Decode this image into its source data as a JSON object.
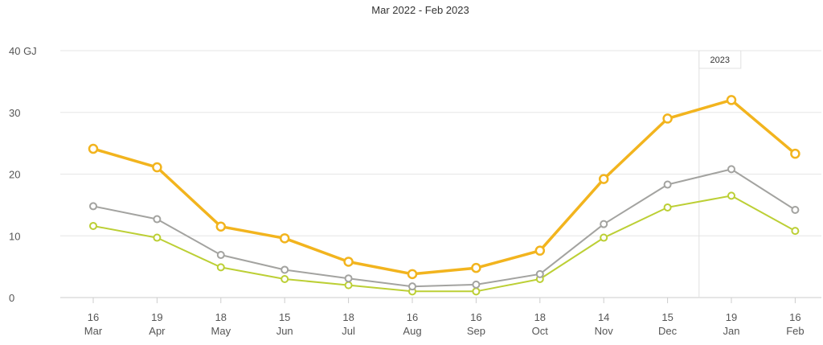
{
  "chart_data": {
    "type": "line",
    "title": "Mar 2022 - Feb 2023",
    "xlabel": "",
    "ylabel": "",
    "ylim": [
      0,
      40
    ],
    "yticks": [
      {
        "value": 0,
        "label": "0"
      },
      {
        "value": 10,
        "label": "10"
      },
      {
        "value": 20,
        "label": "20"
      },
      {
        "value": 30,
        "label": "30"
      },
      {
        "value": 40,
        "label": "40 GJ"
      }
    ],
    "categories": [
      {
        "day": "16",
        "month": "Mar"
      },
      {
        "day": "19",
        "month": "Apr"
      },
      {
        "day": "18",
        "month": "May"
      },
      {
        "day": "15",
        "month": "Jun"
      },
      {
        "day": "18",
        "month": "Jul"
      },
      {
        "day": "16",
        "month": "Aug"
      },
      {
        "day": "16",
        "month": "Sep"
      },
      {
        "day": "18",
        "month": "Oct"
      },
      {
        "day": "14",
        "month": "Nov"
      },
      {
        "day": "15",
        "month": "Dec"
      },
      {
        "day": "19",
        "month": "Jan"
      },
      {
        "day": "16",
        "month": "Feb"
      }
    ],
    "series": [
      {
        "color": "#F2B41E",
        "values": [
          24.1,
          21.1,
          11.5,
          9.6,
          5.8,
          3.8,
          4.8,
          7.6,
          19.2,
          29.0,
          32.0,
          23.3
        ]
      },
      {
        "color": "#A3A3A0",
        "values": [
          14.8,
          12.7,
          6.9,
          4.5,
          3.1,
          1.8,
          2.1,
          3.8,
          11.9,
          18.3,
          20.8,
          14.2
        ]
      },
      {
        "color": "#BCCF35",
        "values": [
          11.6,
          9.7,
          4.9,
          3.0,
          2.0,
          1.0,
          1.0,
          3.0,
          9.7,
          14.6,
          16.5,
          10.8
        ]
      }
    ],
    "annotations": [
      {
        "label": "2023",
        "between": [
          9,
          10
        ]
      }
    ],
    "grid": true,
    "legend": "none"
  }
}
